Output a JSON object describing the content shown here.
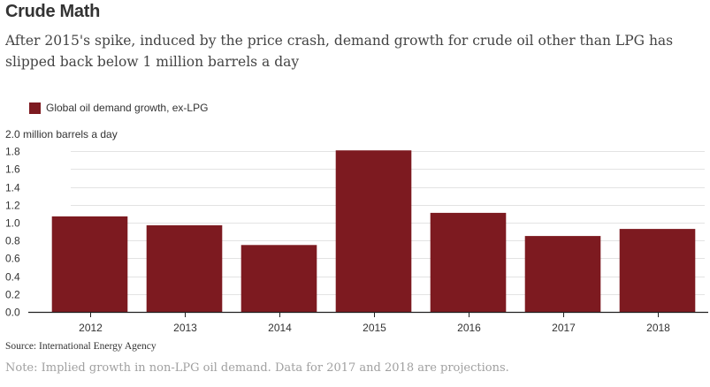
{
  "header": {
    "title": "Crude Math",
    "subtitle": "After 2015's spike, induced by the price crash, demand growth for crude oil other than LPG has slipped back below 1 million barrels a day"
  },
  "footer": {
    "source": "Source: International Energy Agency",
    "note": "Note: Implied growth in non-LPG oil demand. Data for 2017 and 2018 are projections."
  },
  "chart_data": {
    "type": "bar",
    "title": "Crude Math",
    "subtitle": "After 2015's spike, induced by the price crash, demand growth for crude oil other than LPG has slipped back below 1 million barrels a day",
    "xlabel": "",
    "ylabel": "million barrels a day",
    "unit_label": "2.0 million barrels a day",
    "categories": [
      "2012",
      "2013",
      "2014",
      "2015",
      "2016",
      "2017",
      "2018"
    ],
    "series": [
      {
        "name": "Global oil demand growth, ex-LPG",
        "color": "#7d1a20",
        "values": [
          1.07,
          0.97,
          0.75,
          1.81,
          1.11,
          0.85,
          0.93
        ]
      }
    ],
    "ylim": [
      0,
      2.0
    ],
    "yticks": [
      "0.0",
      "0.2",
      "0.4",
      "0.6",
      "0.8",
      "1.0",
      "1.2",
      "1.4",
      "1.6",
      "1.8"
    ],
    "grid": true,
    "legend_position": "top-left"
  }
}
